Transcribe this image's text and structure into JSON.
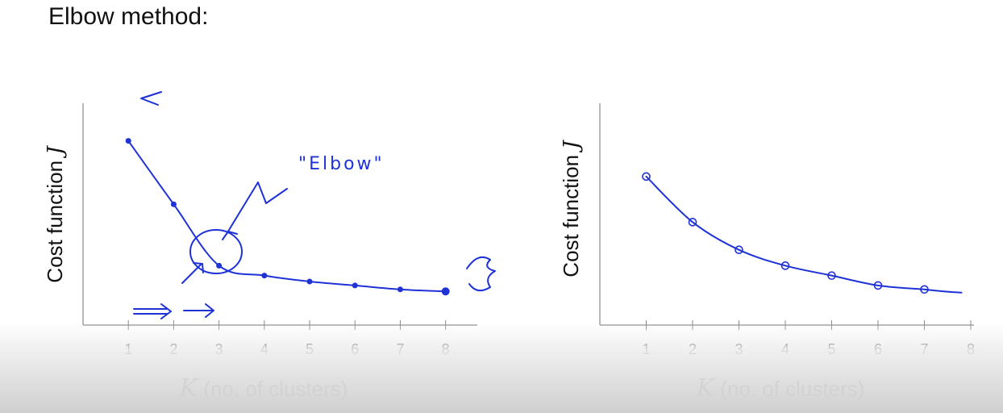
{
  "title": "Elbow method:",
  "colors": {
    "ink": "#1f32d6",
    "axis": "#8a8a8a"
  },
  "chart_data": [
    {
      "type": "line",
      "title": "",
      "xlabel_var": "K",
      "xlabel_text": " (no. of clusters)",
      "ylabel_text": "Cost function ",
      "ylabel_var": "J",
      "x": [
        1,
        2,
        3,
        4,
        5,
        6,
        7,
        8
      ],
      "xticks": [
        "1",
        "2",
        "3",
        "4",
        "5",
        "6",
        "7",
        "8"
      ],
      "y": [
        0.93,
        0.61,
        0.3,
        0.25,
        0.22,
        0.2,
        0.18,
        0.17
      ],
      "xlim": [
        0,
        8.7
      ],
      "ylim": [
        0,
        1.12
      ],
      "grid": false,
      "annotations": [
        {
          "text": "\"Elbow\"",
          "target_x": 3
        }
      ]
    },
    {
      "type": "line",
      "title": "",
      "xlabel_var": "K",
      "xlabel_text": " (no. of clusters)",
      "ylabel_text": "Cost function ",
      "ylabel_var": "J",
      "x": [
        1,
        2,
        3,
        4,
        5,
        6,
        7
      ],
      "xticks": [
        "1",
        "2",
        "3",
        "4",
        "5",
        "6",
        "7",
        "8"
      ],
      "y": [
        0.75,
        0.52,
        0.38,
        0.3,
        0.25,
        0.2,
        0.18
      ],
      "xlim": [
        0,
        8.0
      ],
      "ylim": [
        0,
        1.12
      ],
      "grid": false,
      "annotations": []
    }
  ]
}
